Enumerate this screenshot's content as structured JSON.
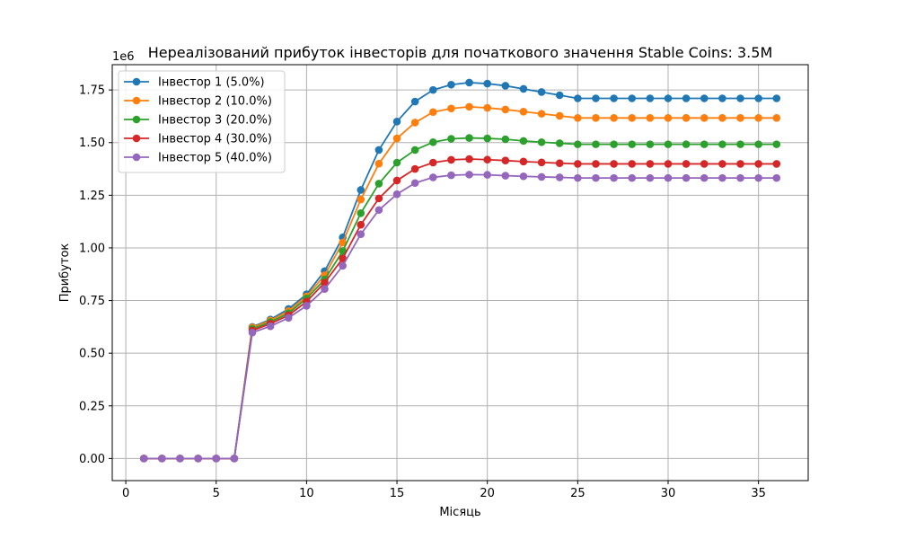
{
  "chart_data": {
    "type": "line",
    "title": "Нереалізований прибуток інвесторів для початкового значення Stable Coins: 3.5M",
    "xlabel": "Місяць",
    "ylabel": "Прибуток",
    "y_offset_label": "1e6",
    "y_scale": 1000000,
    "xlim": [
      -0.75,
      37.75
    ],
    "ylim": [
      -105000,
      1870000
    ],
    "x_ticks": [
      0,
      5,
      10,
      15,
      20,
      25,
      30,
      35
    ],
    "x_tick_labels": [
      "0",
      "5",
      "10",
      "15",
      "20",
      "25",
      "30",
      "35"
    ],
    "y_ticks": [
      0,
      250000,
      500000,
      750000,
      1000000,
      1250000,
      1500000,
      1750000
    ],
    "y_tick_labels": [
      "0.00",
      "0.25",
      "0.50",
      "0.75",
      "1.00",
      "1.25",
      "1.50",
      "1.75"
    ],
    "grid": true,
    "legend_position": "top-left",
    "x": [
      1,
      2,
      3,
      4,
      5,
      6,
      7,
      8,
      9,
      10,
      11,
      12,
      13,
      14,
      15,
      16,
      17,
      18,
      19,
      20,
      21,
      22,
      23,
      24,
      25,
      26,
      27,
      28,
      29,
      30,
      31,
      32,
      33,
      34,
      35,
      36
    ],
    "series": [
      {
        "name": "Інвестор 1 (5.0%)",
        "color": "#1f77b4",
        "values": [
          0,
          0,
          0,
          0,
          0,
          0,
          625000,
          660000,
          710000,
          780000,
          890000,
          1050000,
          1275000,
          1465000,
          1600000,
          1695000,
          1750000,
          1775000,
          1785000,
          1780000,
          1770000,
          1755000,
          1740000,
          1725000,
          1710000,
          1710000,
          1710000,
          1710000,
          1710000,
          1710000,
          1710000,
          1710000,
          1710000,
          1710000,
          1710000,
          1710000
        ]
      },
      {
        "name": "Інвестор 2 (10.0%)",
        "color": "#ff7f0e",
        "values": [
          0,
          0,
          0,
          0,
          0,
          0,
          622000,
          655000,
          700000,
          770000,
          870000,
          1025000,
          1230000,
          1400000,
          1520000,
          1595000,
          1645000,
          1662000,
          1670000,
          1665000,
          1657000,
          1647000,
          1637000,
          1627000,
          1617000,
          1617000,
          1617000,
          1617000,
          1617000,
          1617000,
          1617000,
          1617000,
          1617000,
          1617000,
          1617000,
          1617000
        ]
      },
      {
        "name": "Інвестор 3 (20.0%)",
        "color": "#2ca02c",
        "values": [
          0,
          0,
          0,
          0,
          0,
          0,
          615000,
          648000,
          690000,
          760000,
          850000,
          985000,
          1165000,
          1305000,
          1405000,
          1465000,
          1502000,
          1518000,
          1522000,
          1520000,
          1516000,
          1508000,
          1502000,
          1497000,
          1492000,
          1492000,
          1492000,
          1492000,
          1492000,
          1492000,
          1492000,
          1492000,
          1492000,
          1492000,
          1492000,
          1492000
        ]
      },
      {
        "name": "Інвестор 4 (30.0%)",
        "color": "#d62728",
        "values": [
          0,
          0,
          0,
          0,
          0,
          0,
          608000,
          640000,
          680000,
          745000,
          835000,
          950000,
          1110000,
          1235000,
          1320000,
          1375000,
          1405000,
          1418000,
          1422000,
          1419000,
          1415000,
          1410000,
          1406000,
          1402000,
          1399000,
          1399000,
          1399000,
          1399000,
          1399000,
          1399000,
          1399000,
          1399000,
          1399000,
          1399000,
          1399000,
          1399000
        ]
      },
      {
        "name": "Інвестор 5 (40.0%)",
        "color": "#9467bd",
        "values": [
          0,
          0,
          0,
          0,
          0,
          0,
          598000,
          628000,
          668000,
          725000,
          805000,
          915000,
          1065000,
          1180000,
          1255000,
          1308000,
          1335000,
          1345000,
          1348000,
          1347000,
          1343000,
          1340000,
          1337000,
          1335000,
          1332000,
          1332000,
          1332000,
          1332000,
          1332000,
          1332000,
          1332000,
          1332000,
          1332000,
          1332000,
          1332000,
          1332000
        ]
      }
    ]
  }
}
